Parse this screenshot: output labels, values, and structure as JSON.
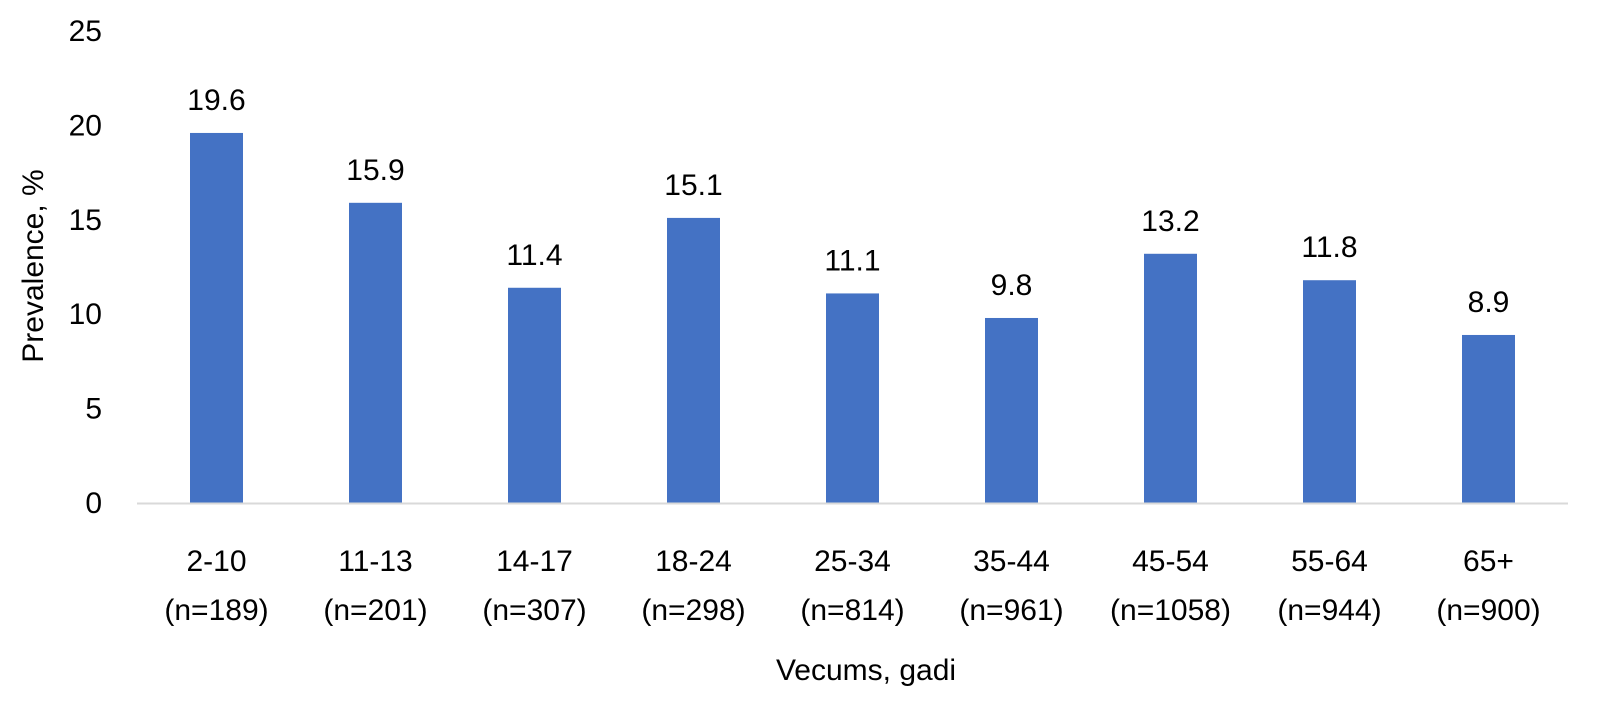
{
  "chart_data": {
    "type": "bar",
    "title": "",
    "xlabel": "Vecums, gadi",
    "ylabel": "Prevalence, %",
    "ylim": [
      0,
      25
    ],
    "yticks": [
      0,
      5,
      10,
      15,
      20,
      25
    ],
    "grid": false,
    "legend": "none",
    "bar_color": "#4472C4",
    "axis_color": "#D9D9D9",
    "categories": [
      {
        "age": "2-10",
        "n": "(n=189)"
      },
      {
        "age": "11-13",
        "n": "(n=201)"
      },
      {
        "age": "14-17",
        "n": "(n=307)"
      },
      {
        "age": "18-24",
        "n": "(n=298)"
      },
      {
        "age": "25-34",
        "n": "(n=814)"
      },
      {
        "age": "35-44",
        "n": "(n=961)"
      },
      {
        "age": "45-54",
        "n": "(n=1058)"
      },
      {
        "age": "55-64",
        "n": "(n=944)"
      },
      {
        "age": "65+",
        "n": "(n=900)"
      }
    ],
    "values": [
      19.6,
      15.9,
      11.4,
      15.1,
      11.1,
      9.8,
      13.2,
      11.8,
      8.9
    ]
  }
}
